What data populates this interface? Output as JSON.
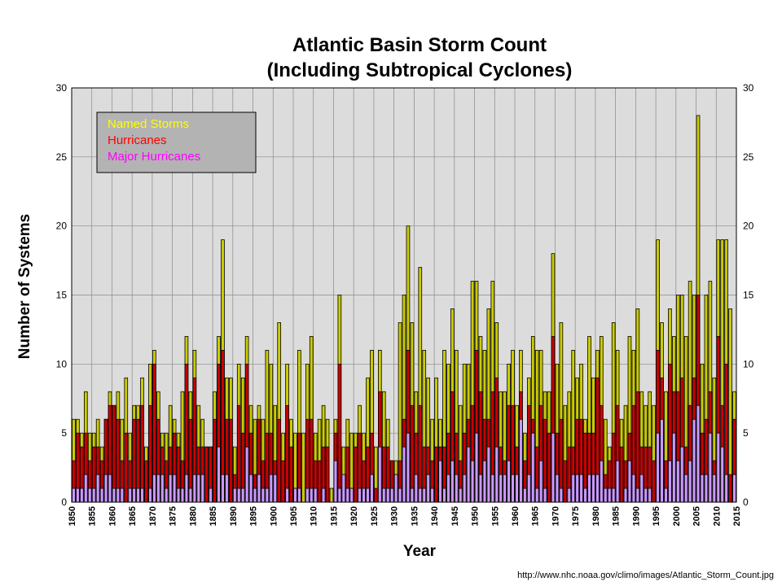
{
  "chart_data": {
    "type": "bar",
    "title_line1": "Atlantic Basin Storm Count",
    "title_line2": "(Including Subtropical Cyclones)",
    "xlabel": "Year",
    "ylabel": "Number of Systems",
    "xlim": [
      1850,
      2015
    ],
    "ylim": [
      0,
      30
    ],
    "y_ticks": [
      0,
      5,
      10,
      15,
      20,
      25,
      30
    ],
    "x_ticks": [
      1850,
      1855,
      1860,
      1865,
      1870,
      1875,
      1880,
      1885,
      1890,
      1895,
      1900,
      1905,
      1910,
      1915,
      1920,
      1925,
      1930,
      1935,
      1940,
      1945,
      1950,
      1955,
      1960,
      1965,
      1970,
      1975,
      1980,
      1985,
      1990,
      1995,
      2000,
      2005,
      2010,
      2015
    ],
    "y_ticks_right": true,
    "grid": true,
    "legend_placement": "top-left",
    "legend": [
      {
        "label": "Named Storms",
        "color": "#ffff00"
      },
      {
        "label": "Hurricanes",
        "color": "#ff0000"
      },
      {
        "label": "Major Hurricanes",
        "color": "#ff00ff"
      }
    ],
    "colors": {
      "named_fill": "#cccc00",
      "hurricane_fill": "#cc0000",
      "major_fill": "#cc99ff",
      "bar_edge": "#000000",
      "plot_bg": "#dcdcdc",
      "grid": "#888888",
      "legend_bg": "#b3b3b3"
    },
    "years": [
      1850,
      1851,
      1852,
      1853,
      1854,
      1855,
      1856,
      1857,
      1858,
      1859,
      1860,
      1861,
      1862,
      1863,
      1864,
      1865,
      1866,
      1867,
      1868,
      1869,
      1870,
      1871,
      1872,
      1873,
      1874,
      1875,
      1876,
      1877,
      1878,
      1879,
      1880,
      1881,
      1882,
      1883,
      1884,
      1885,
      1886,
      1887,
      1888,
      1889,
      1890,
      1891,
      1892,
      1893,
      1894,
      1895,
      1896,
      1897,
      1898,
      1899,
      1900,
      1901,
      1902,
      1903,
      1904,
      1905,
      1906,
      1907,
      1908,
      1909,
      1910,
      1911,
      1912,
      1913,
      1914,
      1915,
      1916,
      1917,
      1918,
      1919,
      1920,
      1921,
      1922,
      1923,
      1924,
      1925,
      1926,
      1927,
      1928,
      1929,
      1930,
      1931,
      1932,
      1933,
      1934,
      1935,
      1936,
      1937,
      1938,
      1939,
      1940,
      1941,
      1942,
      1943,
      1944,
      1945,
      1946,
      1947,
      1948,
      1949,
      1950,
      1951,
      1952,
      1953,
      1954,
      1955,
      1956,
      1957,
      1958,
      1959,
      1960,
      1961,
      1962,
      1963,
      1964,
      1965,
      1966,
      1967,
      1968,
      1969,
      1970,
      1971,
      1972,
      1973,
      1974,
      1975,
      1976,
      1977,
      1978,
      1979,
      1980,
      1981,
      1982,
      1983,
      1984,
      1985,
      1986,
      1987,
      1988,
      1989,
      1990,
      1991,
      1992,
      1993,
      1994,
      1995,
      1996,
      1997,
      1998,
      1999,
      2000,
      2001,
      2002,
      2003,
      2004,
      2005,
      2006,
      2007,
      2008,
      2009,
      2010,
      2011,
      2012,
      2013,
      2014
    ],
    "series": [
      {
        "name": "Named Storms",
        "values": [
          6,
          6,
          5,
          8,
          5,
          5,
          6,
          4,
          6,
          8,
          7,
          8,
          6,
          9,
          5,
          7,
          7,
          9,
          4,
          10,
          11,
          8,
          5,
          5,
          7,
          6,
          5,
          8,
          12,
          8,
          11,
          7,
          6,
          4,
          4,
          8,
          12,
          19,
          9,
          9,
          4,
          10,
          9,
          12,
          7,
          6,
          7,
          6,
          11,
          10,
          7,
          13,
          5,
          10,
          6,
          5,
          11,
          5,
          10,
          12,
          5,
          6,
          7,
          6,
          1,
          6,
          15,
          4,
          6,
          5,
          5,
          7,
          5,
          9,
          11,
          4,
          11,
          8,
          6,
          3,
          3,
          13,
          15,
          20,
          13,
          8,
          17,
          11,
          9,
          6,
          9,
          6,
          11,
          10,
          14,
          11,
          7,
          10,
          10,
          16,
          16,
          12,
          11,
          14,
          16,
          13,
          8,
          8,
          10,
          11,
          7,
          11,
          5,
          9,
          12,
          11,
          11,
          8,
          8,
          18,
          10,
          13,
          7,
          8,
          11,
          9,
          10,
          6,
          12,
          9,
          11,
          12,
          6,
          4,
          13,
          11,
          6,
          7,
          12,
          11,
          14,
          8,
          7,
          8,
          7,
          19,
          13,
          8,
          14,
          12,
          15,
          15,
          12,
          16,
          15,
          28,
          10,
          15,
          16,
          9,
          19,
          19,
          19,
          14,
          8
        ]
      },
      {
        "name": "Hurricanes",
        "values": [
          3,
          5,
          4,
          5,
          3,
          4,
          4,
          3,
          6,
          7,
          7,
          6,
          3,
          5,
          3,
          6,
          6,
          7,
          3,
          7,
          10,
          6,
          4,
          3,
          4,
          5,
          4,
          3,
          10,
          6,
          9,
          4,
          4,
          4,
          4,
          6,
          10,
          11,
          6,
          6,
          2,
          7,
          5,
          10,
          5,
          2,
          6,
          3,
          5,
          5,
          3,
          6,
          3,
          7,
          4,
          1,
          5,
          0,
          6,
          6,
          3,
          3,
          4,
          4,
          0,
          5,
          10,
          2,
          4,
          1,
          4,
          5,
          3,
          4,
          5,
          1,
          8,
          4,
          4,
          3,
          2,
          3,
          6,
          11,
          7,
          5,
          7,
          4,
          4,
          3,
          4,
          4,
          4,
          5,
          8,
          5,
          3,
          5,
          6,
          7,
          11,
          8,
          6,
          6,
          8,
          9,
          4,
          3,
          7,
          7,
          4,
          8,
          3,
          7,
          6,
          4,
          7,
          6,
          5,
          12,
          5,
          6,
          3,
          4,
          4,
          6,
          6,
          5,
          5,
          5,
          9,
          7,
          2,
          3,
          5,
          7,
          4,
          3,
          5,
          7,
          8,
          4,
          4,
          4,
          3,
          11,
          9,
          3,
          10,
          8,
          8,
          9,
          4,
          7,
          9,
          15,
          5,
          6,
          8,
          3,
          12,
          7,
          10,
          2,
          6
        ]
      },
      {
        "name": "Major Hurricanes",
        "values": [
          1,
          1,
          1,
          2,
          1,
          1,
          2,
          1,
          2,
          2,
          1,
          1,
          1,
          0,
          1,
          1,
          1,
          1,
          0,
          1,
          2,
          2,
          2,
          1,
          2,
          2,
          1,
          1,
          2,
          1,
          2,
          2,
          2,
          0,
          1,
          0,
          4,
          2,
          2,
          0,
          1,
          1,
          1,
          4,
          2,
          1,
          2,
          1,
          1,
          2,
          2,
          0,
          0,
          1,
          0,
          1,
          1,
          0,
          1,
          1,
          1,
          0,
          1,
          0,
          0,
          3,
          1,
          2,
          1,
          1,
          0,
          1,
          1,
          1,
          2,
          0,
          4,
          1,
          1,
          1,
          2,
          1,
          4,
          5,
          1,
          2,
          1,
          1,
          2,
          1,
          0,
          3,
          1,
          2,
          3,
          2,
          1,
          2,
          4,
          3,
          5,
          2,
          3,
          4,
          2,
          4,
          2,
          2,
          3,
          2,
          2,
          6,
          1,
          2,
          5,
          1,
          3,
          1,
          0,
          5,
          2,
          1,
          0,
          1,
          2,
          2,
          2,
          1,
          2,
          2,
          2,
          3,
          1,
          1,
          1,
          3,
          0,
          1,
          3,
          2,
          1,
          2,
          1,
          1,
          0,
          5,
          6,
          1,
          3,
          5,
          3,
          4,
          2,
          3,
          6,
          7,
          2,
          2,
          5,
          2,
          5,
          4,
          2,
          0,
          2
        ]
      }
    ],
    "source_url": "http://www.nhc.noaa.gov/climo/images/Atlantic_Storm_Count.jpg"
  }
}
